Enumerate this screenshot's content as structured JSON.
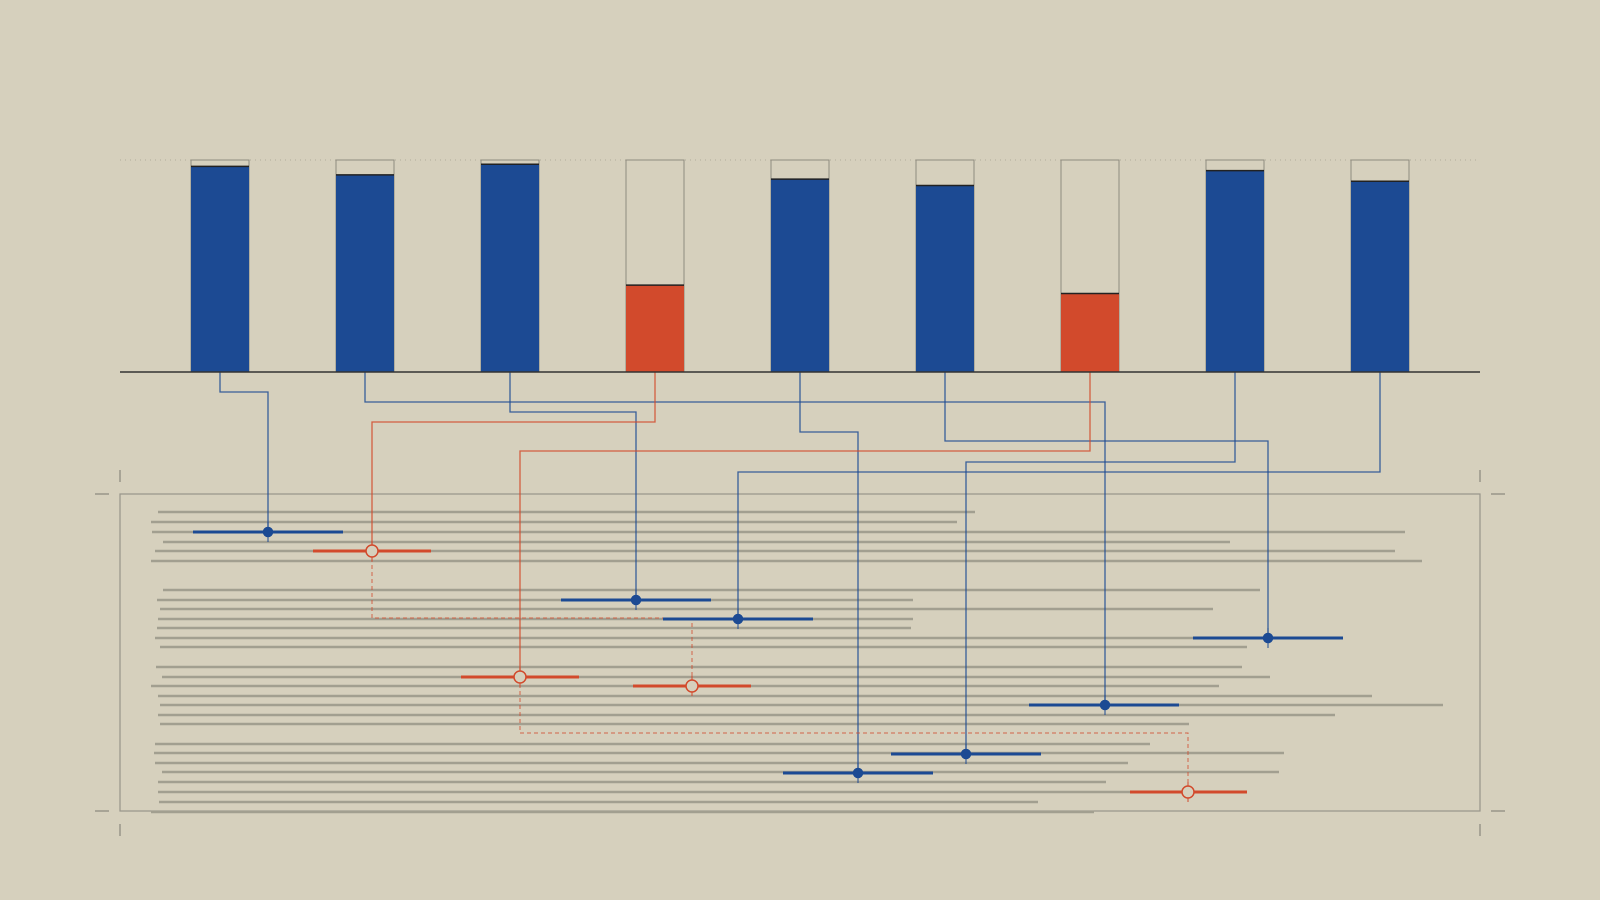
{
  "chart_data": {
    "type": "bar",
    "values": [
      97,
      93,
      98,
      41,
      91,
      88,
      37,
      95,
      90
    ],
    "colors": [
      "#1c4a93",
      "#1c4a93",
      "#1c4a93",
      "#d24a2c",
      "#1c4a93",
      "#1c4a93",
      "#d24a2c",
      "#1c4a93",
      "#1c4a93"
    ],
    "ylim": [
      0,
      100
    ],
    "grid": true
  }
}
